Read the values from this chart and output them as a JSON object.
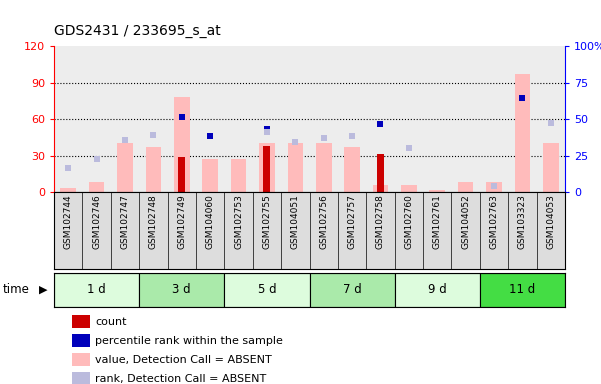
{
  "title": "GDS2431 / 233695_s_at",
  "samples": [
    "GSM102744",
    "GSM102746",
    "GSM102747",
    "GSM102748",
    "GSM102749",
    "GSM104060",
    "GSM102753",
    "GSM102755",
    "GSM104051",
    "GSM102756",
    "GSM102757",
    "GSM102758",
    "GSM102760",
    "GSM102761",
    "GSM104052",
    "GSM102763",
    "GSM103323",
    "GSM104053"
  ],
  "time_groups": [
    {
      "label": "1 d",
      "start": 0,
      "end": 3,
      "color": "#ddfcdd"
    },
    {
      "label": "3 d",
      "start": 3,
      "end": 6,
      "color": "#aaeaaa"
    },
    {
      "label": "5 d",
      "start": 6,
      "end": 9,
      "color": "#ddfcdd"
    },
    {
      "label": "7 d",
      "start": 9,
      "end": 12,
      "color": "#aaeaaa"
    },
    {
      "label": "9 d",
      "start": 12,
      "end": 15,
      "color": "#ddfcdd"
    },
    {
      "label": "11 d",
      "start": 15,
      "end": 18,
      "color": "#44dd44"
    }
  ],
  "count_values": [
    0,
    0,
    0,
    0,
    29,
    0,
    0,
    38,
    0,
    0,
    0,
    31,
    0,
    0,
    0,
    0,
    0,
    0
  ],
  "percentile_values": [
    0,
    0,
    0,
    0,
    62,
    46,
    0,
    52,
    0,
    0,
    0,
    56,
    0,
    0,
    0,
    0,
    77,
    0
  ],
  "value_absent": [
    3,
    8,
    40,
    37,
    78,
    27,
    27,
    40,
    40,
    40,
    37,
    6,
    6,
    2,
    8,
    8,
    97,
    40
  ],
  "rank_absent": [
    20,
    27,
    43,
    47,
    0,
    0,
    0,
    49,
    41,
    44,
    46,
    0,
    36,
    0,
    0,
    5,
    0,
    57
  ],
  "ylim_left": [
    0,
    120
  ],
  "yticks_left": [
    0,
    30,
    60,
    90,
    120
  ],
  "ytick_labels_left": [
    "0",
    "30",
    "60",
    "90",
    "120"
  ],
  "ytick_labels_right": [
    "0",
    "25",
    "50",
    "75",
    "100%"
  ],
  "count_color": "#cc0000",
  "percentile_color": "#0000bb",
  "value_absent_color": "#ffbbbb",
  "rank_absent_color": "#bbbbdd",
  "bg_color": "#ffffff",
  "sample_bg_color": "#dddddd",
  "legend_items": [
    {
      "label": "count",
      "color": "#cc0000"
    },
    {
      "label": "percentile rank within the sample",
      "color": "#0000bb"
    },
    {
      "label": "value, Detection Call = ABSENT",
      "color": "#ffbbbb"
    },
    {
      "label": "rank, Detection Call = ABSENT",
      "color": "#bbbbdd"
    }
  ]
}
